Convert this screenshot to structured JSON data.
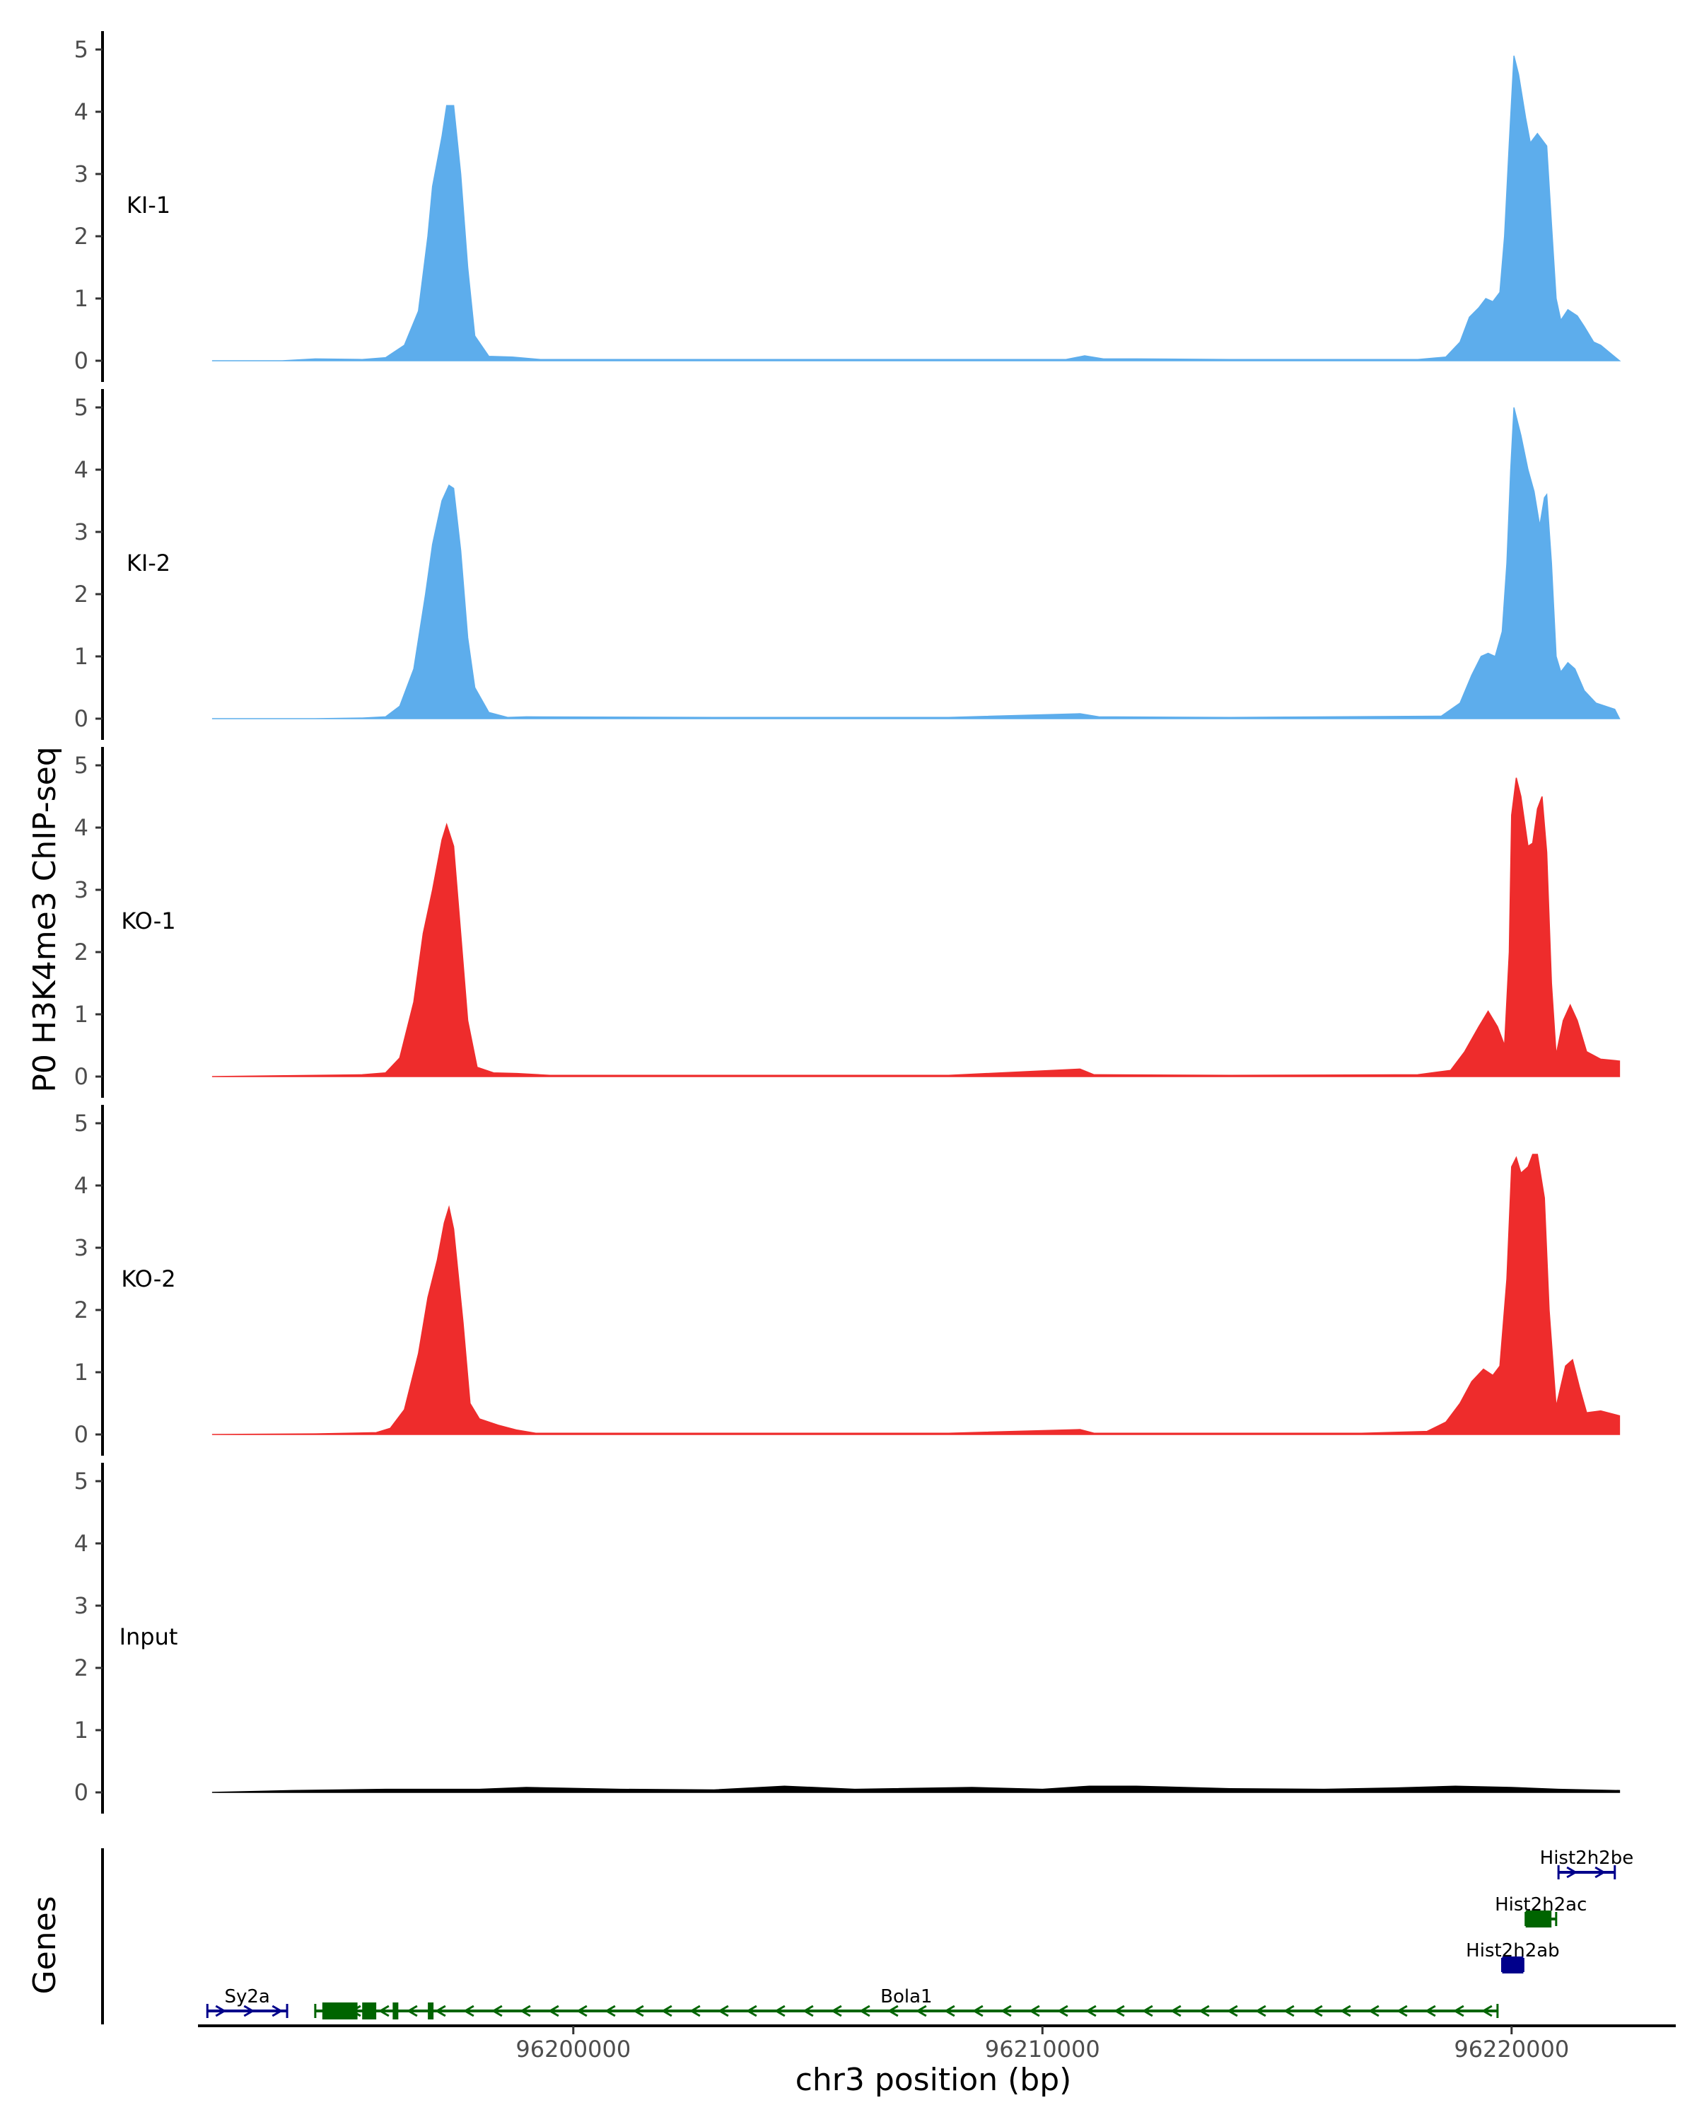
{
  "chart_data": {
    "type": "area",
    "y_axis_title": "P0 H3K4me3 ChIP-seq",
    "x_axis_title": "chr3 position (bp)",
    "genes_axis_title": "Genes",
    "x_range": [
      96192000,
      96223500
    ],
    "x_ticks": [
      {
        "value": 96200000,
        "label": "96200000"
      },
      {
        "value": 96210000,
        "label": "96210000"
      },
      {
        "value": 96220000,
        "label": "96220000"
      }
    ],
    "y_range": [
      0,
      5.2
    ],
    "y_ticks": [
      {
        "value": 0,
        "label": "0"
      },
      {
        "value": 1,
        "label": "1"
      },
      {
        "value": 2,
        "label": "2"
      },
      {
        "value": 3,
        "label": "3"
      },
      {
        "value": 4,
        "label": "4"
      },
      {
        "value": 5,
        "label": "5"
      }
    ],
    "colors": {
      "KI": "#5DADEC",
      "KO": "#EE2C2C",
      "Input": "#000000",
      "gene_minus": "#006400",
      "gene_plus": "#00008B",
      "axis": "#000000"
    },
    "tracks": [
      {
        "label": "KI-1",
        "color": "#5DADEC",
        "points": [
          [
            96192300,
            0
          ],
          [
            96193800,
            0
          ],
          [
            96194500,
            0.03
          ],
          [
            96195500,
            0.02
          ],
          [
            96196000,
            0.05
          ],
          [
            96196400,
            0.25
          ],
          [
            96196700,
            0.8
          ],
          [
            96196900,
            2.0
          ],
          [
            96197000,
            2.8
          ],
          [
            96197200,
            3.6
          ],
          [
            96197300,
            4.1
          ],
          [
            96197450,
            4.1
          ],
          [
            96197600,
            3.0
          ],
          [
            96197750,
            1.5
          ],
          [
            96197900,
            0.4
          ],
          [
            96198200,
            0.07
          ],
          [
            96198700,
            0.06
          ],
          [
            96199300,
            0.02
          ],
          [
            96203000,
            0.02
          ],
          [
            96208000,
            0.02
          ],
          [
            96210500,
            0.02
          ],
          [
            96210900,
            0.08
          ],
          [
            96211300,
            0.03
          ],
          [
            96212000,
            0.03
          ],
          [
            96214000,
            0.02
          ],
          [
            96218000,
            0.02
          ],
          [
            96218600,
            0.06
          ],
          [
            96218900,
            0.3
          ],
          [
            96219100,
            0.7
          ],
          [
            96219300,
            0.85
          ],
          [
            96219450,
            1.0
          ],
          [
            96219600,
            0.95
          ],
          [
            96219750,
            1.1
          ],
          [
            96219850,
            2.0
          ],
          [
            96219950,
            3.5
          ],
          [
            96220050,
            4.9
          ],
          [
            96220150,
            4.6
          ],
          [
            96220300,
            3.9
          ],
          [
            96220400,
            3.5
          ],
          [
            96220550,
            3.65
          ],
          [
            96220750,
            3.45
          ],
          [
            96220850,
            2.2
          ],
          [
            96220950,
            1.0
          ],
          [
            96221050,
            0.65
          ],
          [
            96221200,
            0.82
          ],
          [
            96221400,
            0.72
          ],
          [
            96221550,
            0.55
          ],
          [
            96221750,
            0.3
          ],
          [
            96221900,
            0.25
          ],
          [
            96222300,
            0
          ]
        ]
      },
      {
        "label": "KI-2",
        "color": "#5DADEC",
        "points": [
          [
            96192300,
            0
          ],
          [
            96194500,
            0
          ],
          [
            96195500,
            0.01
          ],
          [
            96196000,
            0.03
          ],
          [
            96196300,
            0.2
          ],
          [
            96196600,
            0.8
          ],
          [
            96196850,
            2.0
          ],
          [
            96197000,
            2.8
          ],
          [
            96197200,
            3.5
          ],
          [
            96197350,
            3.75
          ],
          [
            96197450,
            3.7
          ],
          [
            96197600,
            2.7
          ],
          [
            96197750,
            1.3
          ],
          [
            96197900,
            0.5
          ],
          [
            96198200,
            0.1
          ],
          [
            96198600,
            0.02
          ],
          [
            96199000,
            0.03
          ],
          [
            96203000,
            0.02
          ],
          [
            96208000,
            0.02
          ],
          [
            96210800,
            0.08
          ],
          [
            96211200,
            0.03
          ],
          [
            96214000,
            0.02
          ],
          [
            96218500,
            0.04
          ],
          [
            96218900,
            0.25
          ],
          [
            96219150,
            0.7
          ],
          [
            96219350,
            1.0
          ],
          [
            96219500,
            1.05
          ],
          [
            96219650,
            1.0
          ],
          [
            96219800,
            1.4
          ],
          [
            96219900,
            2.5
          ],
          [
            96219980,
            4.0
          ],
          [
            96220050,
            5.0
          ],
          [
            96220200,
            4.55
          ],
          [
            96220350,
            4.0
          ],
          [
            96220480,
            3.65
          ],
          [
            96220600,
            3.1
          ],
          [
            96220700,
            3.55
          ],
          [
            96220750,
            3.6
          ],
          [
            96220850,
            2.5
          ],
          [
            96220950,
            1.0
          ],
          [
            96221050,
            0.75
          ],
          [
            96221200,
            0.9
          ],
          [
            96221350,
            0.8
          ],
          [
            96221550,
            0.45
          ],
          [
            96221800,
            0.25
          ],
          [
            96222200,
            0.15
          ],
          [
            96222300,
            0
          ]
        ]
      },
      {
        "label": "KO-1",
        "color": "#EE2C2C",
        "points": [
          [
            96192300,
            0
          ],
          [
            96194500,
            0.02
          ],
          [
            96195500,
            0.03
          ],
          [
            96196000,
            0.06
          ],
          [
            96196300,
            0.3
          ],
          [
            96196600,
            1.2
          ],
          [
            96196800,
            2.3
          ],
          [
            96197000,
            3.0
          ],
          [
            96197200,
            3.8
          ],
          [
            96197300,
            4.05
          ],
          [
            96197450,
            3.7
          ],
          [
            96197600,
            2.3
          ],
          [
            96197750,
            0.9
          ],
          [
            96197950,
            0.15
          ],
          [
            96198300,
            0.06
          ],
          [
            96198800,
            0.05
          ],
          [
            96199500,
            0.02
          ],
          [
            96203000,
            0.02
          ],
          [
            96208000,
            0.02
          ],
          [
            96210800,
            0.12
          ],
          [
            96211100,
            0.03
          ],
          [
            96214000,
            0.02
          ],
          [
            96218000,
            0.03
          ],
          [
            96218700,
            0.1
          ],
          [
            96219000,
            0.4
          ],
          [
            96219300,
            0.8
          ],
          [
            96219500,
            1.05
          ],
          [
            96219700,
            0.8
          ],
          [
            96219850,
            0.5
          ],
          [
            96219950,
            2.0
          ],
          [
            96220000,
            4.2
          ],
          [
            96220100,
            4.8
          ],
          [
            96220200,
            4.5
          ],
          [
            96220350,
            3.7
          ],
          [
            96220450,
            3.75
          ],
          [
            96220550,
            4.3
          ],
          [
            96220650,
            4.5
          ],
          [
            96220750,
            3.6
          ],
          [
            96220850,
            1.5
          ],
          [
            96220950,
            0.35
          ],
          [
            96221100,
            0.9
          ],
          [
            96221250,
            1.15
          ],
          [
            96221400,
            0.9
          ],
          [
            96221600,
            0.4
          ],
          [
            96221900,
            0.28
          ],
          [
            96222300,
            0.25
          ],
          [
            96222300,
            0
          ]
        ]
      },
      {
        "label": "KO-2",
        "color": "#EE2C2C",
        "points": [
          [
            96192300,
            0
          ],
          [
            96194500,
            0.01
          ],
          [
            96195800,
            0.03
          ],
          [
            96196100,
            0.1
          ],
          [
            96196400,
            0.4
          ],
          [
            96196700,
            1.3
          ],
          [
            96196900,
            2.2
          ],
          [
            96197100,
            2.8
          ],
          [
            96197250,
            3.4
          ],
          [
            96197350,
            3.65
          ],
          [
            96197450,
            3.3
          ],
          [
            96197650,
            1.8
          ],
          [
            96197800,
            0.5
          ],
          [
            96198000,
            0.25
          ],
          [
            96198400,
            0.15
          ],
          [
            96198800,
            0.07
          ],
          [
            96199200,
            0.02
          ],
          [
            96203000,
            0.02
          ],
          [
            96208000,
            0.02
          ],
          [
            96210800,
            0.08
          ],
          [
            96211100,
            0.02
          ],
          [
            96214000,
            0.02
          ],
          [
            96216800,
            0.02
          ],
          [
            96218200,
            0.05
          ],
          [
            96218600,
            0.2
          ],
          [
            96218900,
            0.5
          ],
          [
            96219150,
            0.85
          ],
          [
            96219400,
            1.05
          ],
          [
            96219600,
            0.95
          ],
          [
            96219750,
            1.1
          ],
          [
            96219900,
            2.5
          ],
          [
            96220000,
            4.3
          ],
          [
            96220100,
            4.45
          ],
          [
            96220200,
            4.2
          ],
          [
            96220350,
            4.3
          ],
          [
            96220450,
            4.5
          ],
          [
            96220550,
            4.5
          ],
          [
            96220700,
            3.8
          ],
          [
            96220800,
            2.0
          ],
          [
            96220950,
            0.45
          ],
          [
            96221150,
            1.1
          ],
          [
            96221300,
            1.2
          ],
          [
            96221450,
            0.75
          ],
          [
            96221600,
            0.35
          ],
          [
            96221900,
            0.38
          ],
          [
            96222300,
            0.3
          ],
          [
            96222300,
            0
          ]
        ]
      },
      {
        "label": "Input",
        "color": "#000000",
        "points": [
          [
            96192300,
            0
          ],
          [
            96194000,
            0.03
          ],
          [
            96196000,
            0.05
          ],
          [
            96198000,
            0.05
          ],
          [
            96199000,
            0.08
          ],
          [
            96201000,
            0.05
          ],
          [
            96203000,
            0.04
          ],
          [
            96204500,
            0.1
          ],
          [
            96206000,
            0.05
          ],
          [
            96208500,
            0.08
          ],
          [
            96210000,
            0.05
          ],
          [
            96211000,
            0.1
          ],
          [
            96212000,
            0.1
          ],
          [
            96214000,
            0.06
          ],
          [
            96216000,
            0.05
          ],
          [
            96217500,
            0.07
          ],
          [
            96218800,
            0.1
          ],
          [
            96220000,
            0.08
          ],
          [
            96221000,
            0.05
          ],
          [
            96222300,
            0.03
          ],
          [
            96222300,
            0
          ]
        ]
      }
    ],
    "genes": [
      {
        "name": "Sy2a",
        "start": 96192200,
        "end": 96193900,
        "strand": "+",
        "row": 0,
        "color": "#00008B",
        "exons": []
      },
      {
        "name": "Bola1",
        "start": 96194500,
        "end": 96219700,
        "strand": "-",
        "row": 0,
        "color": "#006400",
        "exons": [
          [
            96194650,
            96195400
          ],
          [
            96195500,
            96195800
          ],
          [
            96196150,
            96196250
          ],
          [
            96196900,
            96196950
          ]
        ]
      },
      {
        "name": "Hist2h2ab",
        "start": 96219800,
        "end": 96220250,
        "strand": "+",
        "row": 1,
        "color": "#00008B",
        "exons": [
          [
            96219800,
            96220250
          ]
        ]
      },
      {
        "name": "Hist2h2ac",
        "start": 96220300,
        "end": 96220950,
        "strand": "-",
        "row": 2,
        "color": "#006400",
        "exons": [
          [
            96220300,
            96220850
          ]
        ]
      },
      {
        "name": "Hist2h2be",
        "start": 96221000,
        "end": 96222200,
        "strand": "+",
        "row": 3,
        "color": "#00008B",
        "exons": []
      }
    ]
  }
}
